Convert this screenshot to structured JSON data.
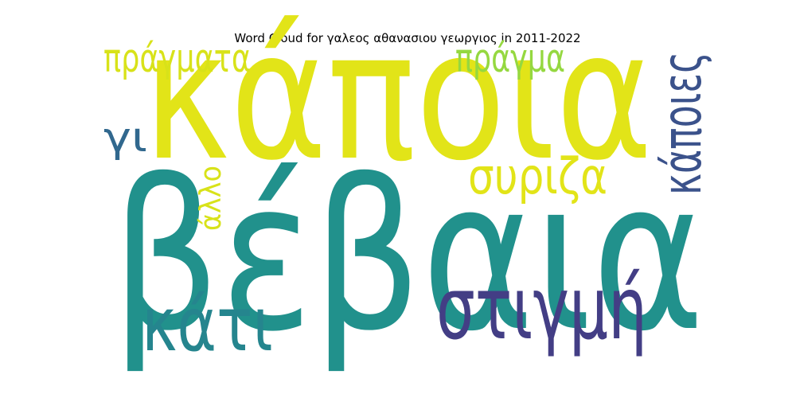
{
  "chart_data": {
    "type": "wordcloud",
    "title": "Word Cloud for γαλεος αθανασιου γεωργιος in 2011-2022",
    "colormap": "viridis",
    "background": "#ffffff",
    "words": [
      {
        "text": "βέβαια",
        "weight": 1.0,
        "color": "#21918c"
      },
      {
        "text": "κάποια",
        "weight": 0.86,
        "color": "#e2e418"
      },
      {
        "text": "στιγμή",
        "weight": 0.42,
        "color": "#433e85"
      },
      {
        "text": "κάτι",
        "weight": 0.36,
        "color": "#25858e"
      },
      {
        "text": "κάποιες",
        "weight": 0.26,
        "color": "#3b528b"
      },
      {
        "text": "συριζα",
        "weight": 0.24,
        "color": "#e2e418"
      },
      {
        "text": "γι",
        "weight": 0.2,
        "color": "#31688e"
      },
      {
        "text": "πράγματα",
        "weight": 0.19,
        "color": "#d8e219"
      },
      {
        "text": "πράγμα",
        "weight": 0.19,
        "color": "#95d840"
      },
      {
        "text": "άλλο",
        "weight": 0.14,
        "color": "#d8e219"
      }
    ]
  }
}
